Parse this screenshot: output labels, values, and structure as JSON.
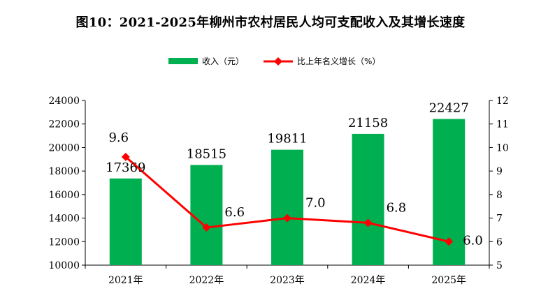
{
  "title": "图10：2021-2025年柳州市农村居民人均可支配收入及其增长速度",
  "chart_data": {
    "type": "bar+line",
    "categories": [
      "2021年",
      "2022年",
      "2023年",
      "2024年",
      "2025年"
    ],
    "series": [
      {
        "name": "收入（元）",
        "type": "bar",
        "axis": "left",
        "color": "#00b050",
        "values": [
          17369,
          18515,
          19811,
          21158,
          22427
        ],
        "labels": [
          "17369",
          "18515",
          "19811",
          "21158",
          "22427"
        ]
      },
      {
        "name": "比上年名义增长（%）",
        "type": "line",
        "axis": "right",
        "color": "#ff0000",
        "marker": "diamond",
        "values": [
          9.6,
          6.6,
          7.0,
          6.8,
          6.0
        ],
        "labels": [
          "9.6",
          "6.6",
          "7.0",
          "6.8",
          "6.0"
        ]
      }
    ],
    "y_left": {
      "min": 10000,
      "max": 24000,
      "step": 2000,
      "ticks": [
        "10000",
        "12000",
        "14000",
        "16000",
        "18000",
        "20000",
        "22000",
        "24000"
      ]
    },
    "y_right": {
      "min": 5,
      "max": 12,
      "step": 1,
      "ticks": [
        "5",
        "6",
        "7",
        "8",
        "9",
        "10",
        "11",
        "12"
      ]
    },
    "legend_position": "top",
    "grid": false
  }
}
